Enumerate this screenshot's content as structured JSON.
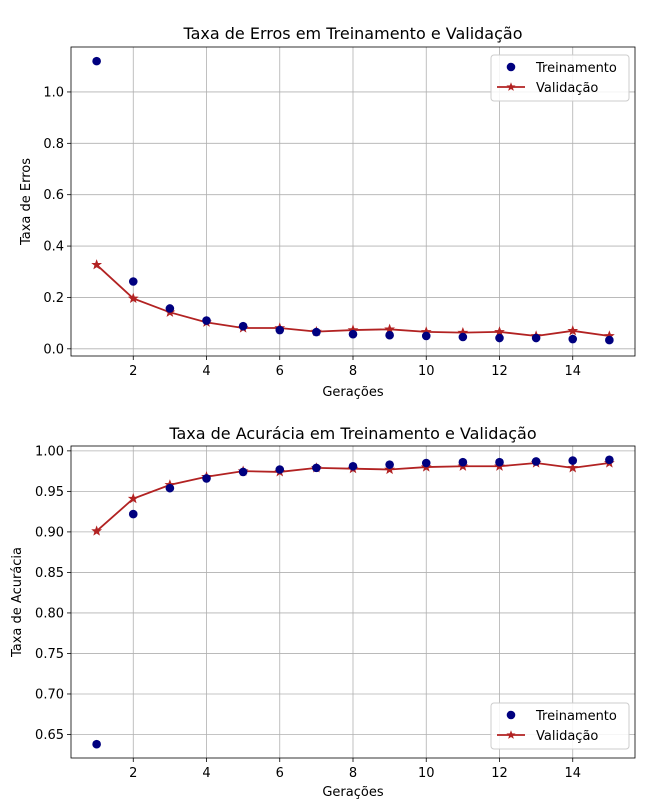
{
  "colors": {
    "training": "#00007f",
    "validation": "#b22222",
    "grid": "#b0b0b0",
    "axis": "#000000",
    "legend_border": "#cccccc"
  },
  "chart_data": [
    {
      "type": "line",
      "title": "Taxa de Erros em Treinamento e Validação",
      "xlabel": "Gerações",
      "ylabel": "Taxa de Erros",
      "x": [
        1,
        2,
        3,
        4,
        5,
        6,
        7,
        8,
        9,
        10,
        11,
        12,
        13,
        14,
        15
      ],
      "xlim": [
        0.3,
        15.7
      ],
      "ylim": [
        -0.028,
        1.175
      ],
      "xticks": [
        2,
        4,
        6,
        8,
        10,
        12,
        14
      ],
      "yticks": [
        0.0,
        0.2,
        0.4,
        0.6,
        0.8,
        1.0
      ],
      "ytick_labels": [
        "0.0",
        "0.2",
        "0.4",
        "0.6",
        "0.8",
        "1.0"
      ],
      "grid": true,
      "legend_position": "top-right",
      "series": [
        {
          "name": "Treinamento",
          "style": "markers",
          "marker": "circle",
          "values": [
            1.12,
            0.262,
            0.157,
            0.11,
            0.088,
            0.073,
            0.065,
            0.057,
            0.053,
            0.05,
            0.046,
            0.042,
            0.042,
            0.038,
            0.034
          ]
        },
        {
          "name": "Validação",
          "style": "line",
          "marker": "star",
          "values": [
            0.327,
            0.196,
            0.142,
            0.103,
            0.081,
            0.081,
            0.067,
            0.073,
            0.076,
            0.066,
            0.063,
            0.066,
            0.05,
            0.07,
            0.05
          ]
        }
      ]
    },
    {
      "type": "line",
      "title": "Taxa de Acurácia em Treinamento e Validação",
      "xlabel": "Gerações",
      "ylabel": "Taxa de Acurácia",
      "x": [
        1,
        2,
        3,
        4,
        5,
        6,
        7,
        8,
        9,
        10,
        11,
        12,
        13,
        14,
        15
      ],
      "xlim": [
        0.3,
        15.7
      ],
      "ylim": [
        0.621,
        1.006
      ],
      "xticks": [
        2,
        4,
        6,
        8,
        10,
        12,
        14
      ],
      "yticks": [
        0.65,
        0.7,
        0.75,
        0.8,
        0.85,
        0.9,
        0.95,
        1.0
      ],
      "ytick_labels": [
        "0.65",
        "0.70",
        "0.75",
        "0.80",
        "0.85",
        "0.90",
        "0.95",
        "1.00"
      ],
      "grid": true,
      "legend_position": "bottom-right",
      "series": [
        {
          "name": "Treinamento",
          "style": "markers",
          "marker": "circle",
          "values": [
            0.638,
            0.922,
            0.954,
            0.966,
            0.974,
            0.977,
            0.979,
            0.981,
            0.983,
            0.985,
            0.986,
            0.986,
            0.987,
            0.988,
            0.989
          ]
        },
        {
          "name": "Validação",
          "style": "line",
          "marker": "star",
          "values": [
            0.901,
            0.941,
            0.958,
            0.968,
            0.975,
            0.974,
            0.979,
            0.978,
            0.977,
            0.98,
            0.981,
            0.981,
            0.985,
            0.979,
            0.985
          ]
        }
      ]
    }
  ]
}
